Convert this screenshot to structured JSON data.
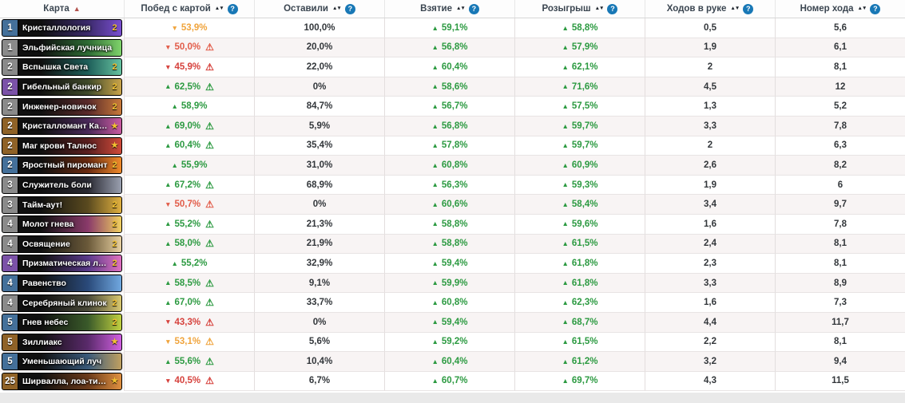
{
  "table": {
    "columns": [
      {
        "label": "Карта",
        "sort": "asc-active",
        "help": false
      },
      {
        "label": "Побед с картой",
        "sort": "both",
        "help": true
      },
      {
        "label": "Оставили",
        "sort": "both",
        "help": true
      },
      {
        "label": "Взятие",
        "sort": "both",
        "help": true
      },
      {
        "label": "Розыгрыш",
        "sort": "both",
        "help": true
      },
      {
        "label": "Ходов в руке",
        "sort": "both",
        "help": true
      },
      {
        "label": "Номер хода",
        "sort": "both",
        "help": true
      }
    ],
    "rows": [
      {
        "cost": "1",
        "rarity": "rare",
        "name": "Кристаллология",
        "count": "2",
        "star": false,
        "win": {
          "value": "53,9%",
          "trend": "down",
          "tone": "amber",
          "warn": null
        },
        "kept": "100,0%",
        "drawn": "59,1%",
        "played": "58,8%",
        "hand_turns": "0,5",
        "turn_played": "5,6",
        "art": [
          "#3b2a6b",
          "#7a4fd0"
        ]
      },
      {
        "cost": "1",
        "rarity": "common",
        "name": "Эльфийская лучница",
        "count": "",
        "star": false,
        "win": {
          "value": "50,0%",
          "trend": "down",
          "tone": "orange",
          "warn": "orange"
        },
        "kept": "20,0%",
        "drawn": "56,8%",
        "played": "57,9%",
        "hand_turns": "1,9",
        "turn_played": "6,1",
        "art": [
          "#2e6b34",
          "#7fd36a"
        ]
      },
      {
        "cost": "2",
        "rarity": "common",
        "name": "Вспышка Света",
        "count": "2",
        "star": false,
        "win": {
          "value": "45,9%",
          "trend": "down",
          "tone": "red",
          "warn": "red"
        },
        "kept": "22,0%",
        "drawn": "60,4%",
        "played": "62,1%",
        "hand_turns": "2",
        "turn_played": "8,1",
        "art": [
          "#1e5f5a",
          "#66c2a0"
        ]
      },
      {
        "cost": "2",
        "rarity": "epic",
        "name": "Гибельный банкир",
        "count": "2",
        "star": false,
        "win": {
          "value": "62,5%",
          "trend": "up",
          "tone": "green",
          "warn": "green"
        },
        "kept": "0%",
        "drawn": "58,6%",
        "played": "71,6%",
        "hand_turns": "4,5",
        "turn_played": "12",
        "art": [
          "#3f4a2a",
          "#c9a44a"
        ]
      },
      {
        "cost": "2",
        "rarity": "common",
        "name": "Инженер-новичок",
        "count": "2",
        "star": false,
        "win": {
          "value": "58,9%",
          "trend": "up",
          "tone": "green",
          "warn": null
        },
        "kept": "84,7%",
        "drawn": "56,7%",
        "played": "57,5%",
        "hand_turns": "1,3",
        "turn_played": "5,2",
        "art": [
          "#5a2a2a",
          "#c97a3a"
        ]
      },
      {
        "cost": "2",
        "rarity": "legendary",
        "name": "Кристалломант Канг...",
        "count": "",
        "star": true,
        "win": {
          "value": "69,0%",
          "trend": "up",
          "tone": "green",
          "warn": "green"
        },
        "kept": "5,9%",
        "drawn": "56,8%",
        "played": "59,7%",
        "hand_turns": "3,3",
        "turn_played": "7,8",
        "art": [
          "#4a2a5a",
          "#c95aa0"
        ]
      },
      {
        "cost": "2",
        "rarity": "legendary",
        "name": "Маг крови Талнос",
        "count": "",
        "star": true,
        "win": {
          "value": "60,4%",
          "trend": "up",
          "tone": "green",
          "warn": "green"
        },
        "kept": "35,4%",
        "drawn": "57,8%",
        "played": "59,7%",
        "hand_turns": "2",
        "turn_played": "6,3",
        "art": [
          "#5a1f1f",
          "#d04a3a"
        ]
      },
      {
        "cost": "2",
        "rarity": "rare",
        "name": "Яростный пиромант",
        "count": "2",
        "star": false,
        "win": {
          "value": "55,9%",
          "trend": "up",
          "tone": "green",
          "warn": null
        },
        "kept": "31,0%",
        "drawn": "60,8%",
        "played": "60,9%",
        "hand_turns": "2,6",
        "turn_played": "8,2",
        "art": [
          "#6b2a10",
          "#f08a2a"
        ]
      },
      {
        "cost": "3",
        "rarity": "common",
        "name": "Служитель боли",
        "count": "",
        "star": false,
        "win": {
          "value": "67,2%",
          "trend": "up",
          "tone": "green",
          "warn": "green"
        },
        "kept": "68,9%",
        "drawn": "56,3%",
        "played": "59,3%",
        "hand_turns": "1,9",
        "turn_played": "6",
        "art": [
          "#2a2a33",
          "#9aa0b0"
        ]
      },
      {
        "cost": "3",
        "rarity": "common",
        "name": "Тайм-аут!",
        "count": "2",
        "star": false,
        "win": {
          "value": "50,7%",
          "trend": "down",
          "tone": "orange",
          "warn": "orange"
        },
        "kept": "0%",
        "drawn": "60,6%",
        "played": "58,4%",
        "hand_turns": "3,4",
        "turn_played": "9,7",
        "art": [
          "#5a4a1f",
          "#e0b040"
        ]
      },
      {
        "cost": "4",
        "rarity": "common",
        "name": "Молот гнева",
        "count": "2",
        "star": false,
        "win": {
          "value": "55,2%",
          "trend": "up",
          "tone": "green",
          "warn": "green"
        },
        "kept": "21,3%",
        "drawn": "58,8%",
        "played": "59,6%",
        "hand_turns": "1,6",
        "turn_played": "7,8",
        "art": [
          "#8a3a6a",
          "#f0d060"
        ]
      },
      {
        "cost": "4",
        "rarity": "common",
        "name": "Освящение",
        "count": "2",
        "star": false,
        "win": {
          "value": "58,0%",
          "trend": "up",
          "tone": "green",
          "warn": "green"
        },
        "kept": "21,9%",
        "drawn": "58,8%",
        "played": "61,5%",
        "hand_turns": "2,4",
        "turn_played": "8,1",
        "art": [
          "#6b5a3a",
          "#e8d0a0"
        ]
      },
      {
        "cost": "4",
        "rarity": "epic",
        "name": "Призматическая ли...",
        "count": "2",
        "star": false,
        "win": {
          "value": "55,2%",
          "trend": "up",
          "tone": "green",
          "warn": null
        },
        "kept": "32,9%",
        "drawn": "59,4%",
        "played": "61,8%",
        "hand_turns": "2,3",
        "turn_played": "8,1",
        "art": [
          "#5a3a8a",
          "#e070c0"
        ]
      },
      {
        "cost": "4",
        "rarity": "rare",
        "name": "Равенство",
        "count": "",
        "star": false,
        "win": {
          "value": "58,5%",
          "trend": "up",
          "tone": "green",
          "warn": "green"
        },
        "kept": "9,1%",
        "drawn": "59,9%",
        "played": "61,8%",
        "hand_turns": "3,3",
        "turn_played": "8,9",
        "art": [
          "#2a4a7a",
          "#70a8e0"
        ]
      },
      {
        "cost": "4",
        "rarity": "common",
        "name": "Серебряный клинок",
        "count": "2",
        "star": false,
        "win": {
          "value": "67,0%",
          "trend": "up",
          "tone": "green",
          "warn": "green"
        },
        "kept": "33,7%",
        "drawn": "60,8%",
        "played": "62,3%",
        "hand_turns": "1,6",
        "turn_played": "7,3",
        "art": [
          "#4a4a3a",
          "#d8c870"
        ]
      },
      {
        "cost": "5",
        "rarity": "rare",
        "name": "Гнев небес",
        "count": "2",
        "star": false,
        "win": {
          "value": "43,3%",
          "trend": "down",
          "tone": "red",
          "warn": "red"
        },
        "kept": "0%",
        "drawn": "59,4%",
        "played": "68,7%",
        "hand_turns": "4,4",
        "turn_played": "11,7",
        "art": [
          "#3a5a2a",
          "#c0d040"
        ]
      },
      {
        "cost": "5",
        "rarity": "legendary",
        "name": "Зиллиакс",
        "count": "",
        "star": true,
        "win": {
          "value": "53,1%",
          "trend": "down",
          "tone": "amber",
          "warn": "amber"
        },
        "kept": "5,6%",
        "drawn": "59,2%",
        "played": "61,5%",
        "hand_turns": "2,2",
        "turn_played": "8,1",
        "art": [
          "#5a2a6b",
          "#d060e0"
        ]
      },
      {
        "cost": "5",
        "rarity": "rare",
        "name": "Уменьшающий луч",
        "count": "",
        "star": false,
        "win": {
          "value": "55,6%",
          "trend": "up",
          "tone": "green",
          "warn": "green"
        },
        "kept": "10,4%",
        "drawn": "60,4%",
        "played": "61,2%",
        "hand_turns": "3,2",
        "turn_played": "9,4",
        "art": [
          "#3a5a7a",
          "#c0a060"
        ]
      },
      {
        "cost": "25",
        "rarity": "legendary",
        "name": "Ширвалла, лоа-тигр...",
        "count": "",
        "star": true,
        "win": {
          "value": "40,5%",
          "trend": "down",
          "tone": "red",
          "warn": "red"
        },
        "kept": "6,7%",
        "drawn": "60,7%",
        "played": "69,7%",
        "hand_turns": "4,3",
        "turn_played": "11,5",
        "art": [
          "#6b3a1a",
          "#e09040"
        ]
      }
    ]
  },
  "icons": {
    "up_arrow": "▲",
    "down_arrow": "▼",
    "sort_pair": "▲▼",
    "sort_active": "▲",
    "warning": "⚠",
    "star": "★",
    "help": "?"
  },
  "colors": {
    "positive": "#2c9a41",
    "warning_amber": "#f0a43c",
    "negative_orange": "#e25c49",
    "negative_red": "#d6413c",
    "help_badge": "#1878b6",
    "gold": "#f3c232",
    "rarity_common": "#8a8a8a",
    "rarity_rare": "#44709a",
    "rarity_epic": "#7b52a8",
    "rarity_legendary": "#8f6227"
  }
}
